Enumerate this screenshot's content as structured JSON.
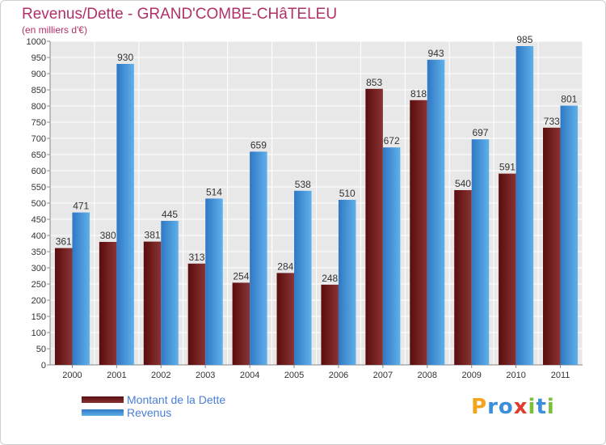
{
  "chart_data": {
    "type": "bar",
    "title": "Revenus/Dette - GRAND'COMBE-CHâTELEU",
    "subtitle": "(en milliers d'€)",
    "categories": [
      "2000",
      "2001",
      "2002",
      "2003",
      "2004",
      "2005",
      "2006",
      "2007",
      "2008",
      "2009",
      "2010",
      "2011"
    ],
    "series": [
      {
        "name": "Montant de la Dette",
        "color": "#7a1e1e",
        "values": [
          361,
          380,
          381,
          313,
          254,
          284,
          248,
          853,
          818,
          540,
          591,
          733
        ]
      },
      {
        "name": "Revenus",
        "color": "#4fa3e3",
        "values": [
          471,
          930,
          445,
          514,
          659,
          538,
          510,
          672,
          943,
          697,
          985,
          801
        ]
      }
    ],
    "ylim": [
      0,
      1000
    ],
    "ytick_step": 50,
    "grid": true,
    "legend_position": "bottom-left"
  },
  "logo": {
    "letters": [
      "P",
      "r",
      "o",
      "x",
      "i",
      "t",
      "i"
    ],
    "colors": [
      "#f2a51d",
      "#3a8fd8",
      "#3a8fd8",
      "#e23b2e",
      "#7cbf3a",
      "#3a8fd8",
      "#7cbf3a"
    ]
  }
}
